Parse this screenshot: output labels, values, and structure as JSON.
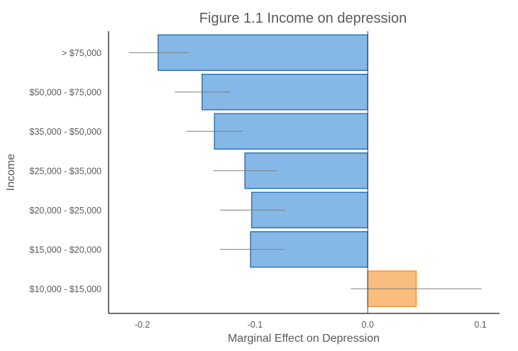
{
  "chart_data": {
    "type": "bar",
    "orientation": "horizontal",
    "title": "Figure 1.1 Income on depression",
    "xlabel": "Marginal Effect on Depression",
    "ylabel": "Income",
    "xlim": [
      -0.23,
      0.117
    ],
    "xticks": [
      -0.2,
      -0.1,
      0,
      0.1
    ],
    "xtick_labels": [
      "-0.2",
      "-0.1",
      "0.0",
      "0.1"
    ],
    "grid": false,
    "categories": [
      "> $75,000",
      "$50,000 - $75,000",
      "$35,000 - $50,000",
      "$25,000 - $35,000",
      "$20,000 - $25,000",
      "$15,000 - $20,000",
      "$10,000 - $15,000"
    ],
    "values": [
      -0.186,
      -0.147,
      -0.136,
      -0.109,
      -0.103,
      -0.104,
      0.043
    ],
    "error_low": [
      -0.212,
      -0.171,
      -0.161,
      -0.137,
      -0.131,
      -0.131,
      -0.015
    ],
    "error_high": [
      -0.159,
      -0.122,
      -0.111,
      -0.08,
      -0.073,
      -0.074,
      0.101
    ],
    "colors": {
      "negative_fill": "#85B8E6",
      "negative_stroke": "#2E75B6",
      "positive_fill": "#F9BD7E",
      "positive_stroke": "#ED9A3E",
      "error_bar": "#7F7F7F",
      "axis": "#404040",
      "text": "#595959"
    }
  }
}
